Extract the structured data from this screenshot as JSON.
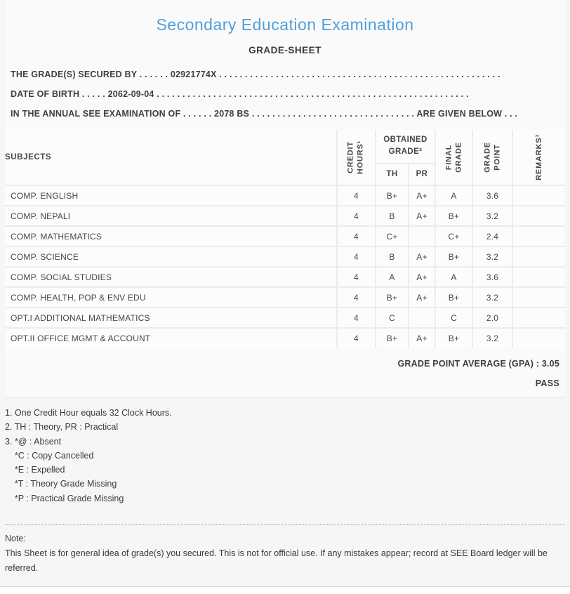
{
  "header": {
    "title": "Secondary Education Examination",
    "subtitle": "GRADE-SHEET"
  },
  "fields": [
    {
      "label": "THE GRADE(S) SECURED BY",
      "pre_dots": " . . . . . . ",
      "value": "02921774X",
      "post_dots": " . . . . . . . . . . . . . . . . . . . . . . . . . . . . . . . . . . . . . . . . . . . . . . . . . . . . . . .",
      "suffix": ""
    },
    {
      "label": "DATE OF BIRTH",
      "pre_dots": " . . . . . ",
      "value": "2062-09-04",
      "post_dots": " . . . . . . . . . . . . . . . . . . . . . . . . . . . . . . . . . . . . . . . . . . . . . . . . . . . . . . . . . . . . .",
      "suffix": ""
    },
    {
      "label": "IN THE ANNUAL SEE EXAMINATION OF",
      "pre_dots": " . . . . . . ",
      "value": "2078 BS",
      "post_dots": " . . . . . . . . . . . . . . . . . . . . . . . . . . . . . . . . ",
      "suffix": "ARE GIVEN BELOW . . ."
    }
  ],
  "table": {
    "headers": {
      "subjects": "SUBJECTS",
      "credit_hours": "CREDIT HOURS¹",
      "obtained_grade": "OBTAINED GRADE²",
      "th": "TH",
      "pr": "PR",
      "final_grade": "FINAL GRADE",
      "grade_point": "GRADE POINT",
      "remarks": "REMARKS³"
    },
    "rows": [
      {
        "subject": "COMP. ENGLISH",
        "credit": "4",
        "th": "B+",
        "pr": "A+",
        "final": "A",
        "point": "3.6",
        "remarks": ""
      },
      {
        "subject": "COMP. NEPALI",
        "credit": "4",
        "th": "B",
        "pr": "A+",
        "final": "B+",
        "point": "3.2",
        "remarks": ""
      },
      {
        "subject": "COMP. MATHEMATICS",
        "credit": "4",
        "th": "C+",
        "pr": "",
        "final": "C+",
        "point": "2.4",
        "remarks": ""
      },
      {
        "subject": "COMP. SCIENCE",
        "credit": "4",
        "th": "B",
        "pr": "A+",
        "final": "B+",
        "point": "3.2",
        "remarks": ""
      },
      {
        "subject": "COMP. SOCIAL STUDIES",
        "credit": "4",
        "th": "A",
        "pr": "A+",
        "final": "A",
        "point": "3.6",
        "remarks": ""
      },
      {
        "subject": "COMP. HEALTH, POP & ENV EDU",
        "credit": "4",
        "th": "B+",
        "pr": "A+",
        "final": "B+",
        "point": "3.2",
        "remarks": ""
      },
      {
        "subject": "OPT.I ADDITIONAL MATHEMATICS",
        "credit": "4",
        "th": "C",
        "pr": "",
        "final": "C",
        "point": "2.0",
        "remarks": ""
      },
      {
        "subject": "OPT.II OFFICE MGMT & ACCOUNT",
        "credit": "4",
        "th": "B+",
        "pr": "A+",
        "final": "B+",
        "point": "3.2",
        "remarks": ""
      }
    ]
  },
  "summary": {
    "gpa_line": "GRADE POINT AVERAGE (GPA) : 3.05",
    "result": "PASS"
  },
  "footnotes": [
    "1. One Credit Hour equals 32 Clock Hours.",
    "2. TH : Theory, PR : Practical",
    "3. *@ : Absent",
    "    *C : Copy Cancelled",
    "    *E : Expelled",
    "    *T : Theory Grade Missing",
    "    *P : Practical Grade Missing"
  ],
  "note": {
    "label": "Note:",
    "text": "This Sheet is for general idea of grade(s) you secured. This is not for official use. If any mistakes appear; record at SEE Board ledger will be referred."
  },
  "colors": {
    "title_blue": "#4f9fdc",
    "text_dark": "#3d3d3d",
    "cell_border": "#ececec",
    "page_background": "#f6f6f6"
  }
}
